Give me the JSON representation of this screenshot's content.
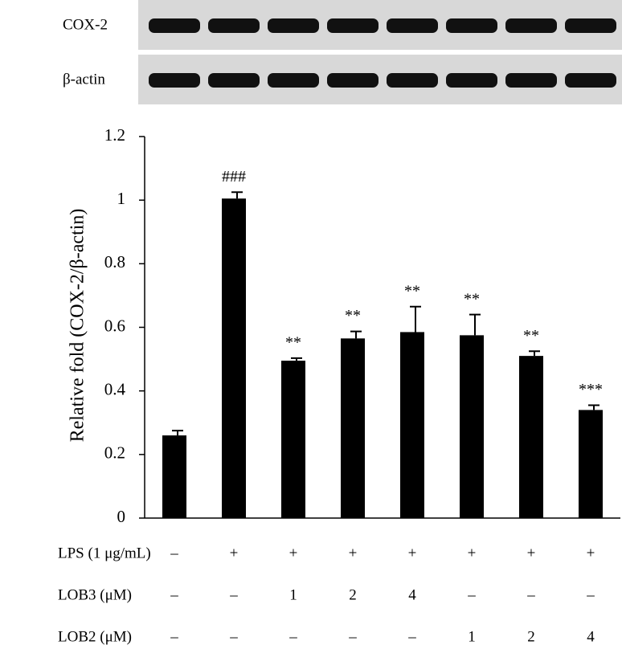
{
  "chart_data": {
    "type": "bar",
    "blots": [
      "COX-2",
      "β-actin"
    ],
    "ylabel": "Relative fold (COX-2/β-actin)",
    "values": [
      0.26,
      1.005,
      0.495,
      0.565,
      0.585,
      0.575,
      0.51,
      0.34
    ],
    "errors": [
      0.015,
      0.02,
      0.008,
      0.022,
      0.08,
      0.065,
      0.015,
      0.015
    ],
    "annotations": [
      null,
      "###",
      "**",
      "**",
      "**",
      "**",
      "**",
      "***"
    ],
    "color": "#000000",
    "ylim": [
      0,
      1.2
    ],
    "yticks": [
      0,
      0.2,
      0.4,
      0.6,
      0.8,
      1,
      1.2
    ],
    "treatments": [
      {
        "name": "LPS (1 μg/mL)",
        "values": [
          "–",
          "+",
          "+",
          "+",
          "+",
          "+",
          "+",
          "+"
        ]
      },
      {
        "name": "LOB3 (μM)",
        "values": [
          "–",
          "–",
          "1",
          "2",
          "4",
          "–",
          "–",
          "–"
        ]
      },
      {
        "name": "LOB2 (μM)",
        "values": [
          "–",
          "–",
          "–",
          "–",
          "–",
          "1",
          "2",
          "4"
        ]
      }
    ]
  }
}
